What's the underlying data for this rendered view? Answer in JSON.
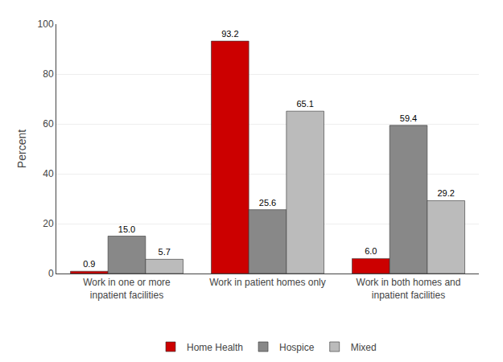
{
  "chart_data": {
    "type": "bar",
    "categories": [
      "Work in one or more\ninpatient facilities",
      "Work in patient homes only",
      "Work in both homes and\ninpatient facilities"
    ],
    "series": [
      {
        "name": "Home Health",
        "color": "#cc0000",
        "values": [
          0.9,
          93.2,
          6.0
        ],
        "value_labels": [
          "0.9",
          "93.2",
          "6.0"
        ]
      },
      {
        "name": "Hospice",
        "color": "#888888",
        "values": [
          15.0,
          25.6,
          59.4
        ],
        "value_labels": [
          "15.0",
          "25.6",
          "59.4"
        ]
      },
      {
        "name": "Mixed",
        "color": "#bbbbbb",
        "values": [
          5.7,
          65.1,
          29.2
        ],
        "value_labels": [
          "5.7",
          "65.1",
          "29.2"
        ]
      }
    ],
    "ylabel": "Percent",
    "ylim": [
      0,
      100
    ],
    "yticks": [
      0,
      20,
      40,
      60,
      80,
      100
    ],
    "grid": true,
    "legend": "bottom",
    "data_labels": true
  }
}
